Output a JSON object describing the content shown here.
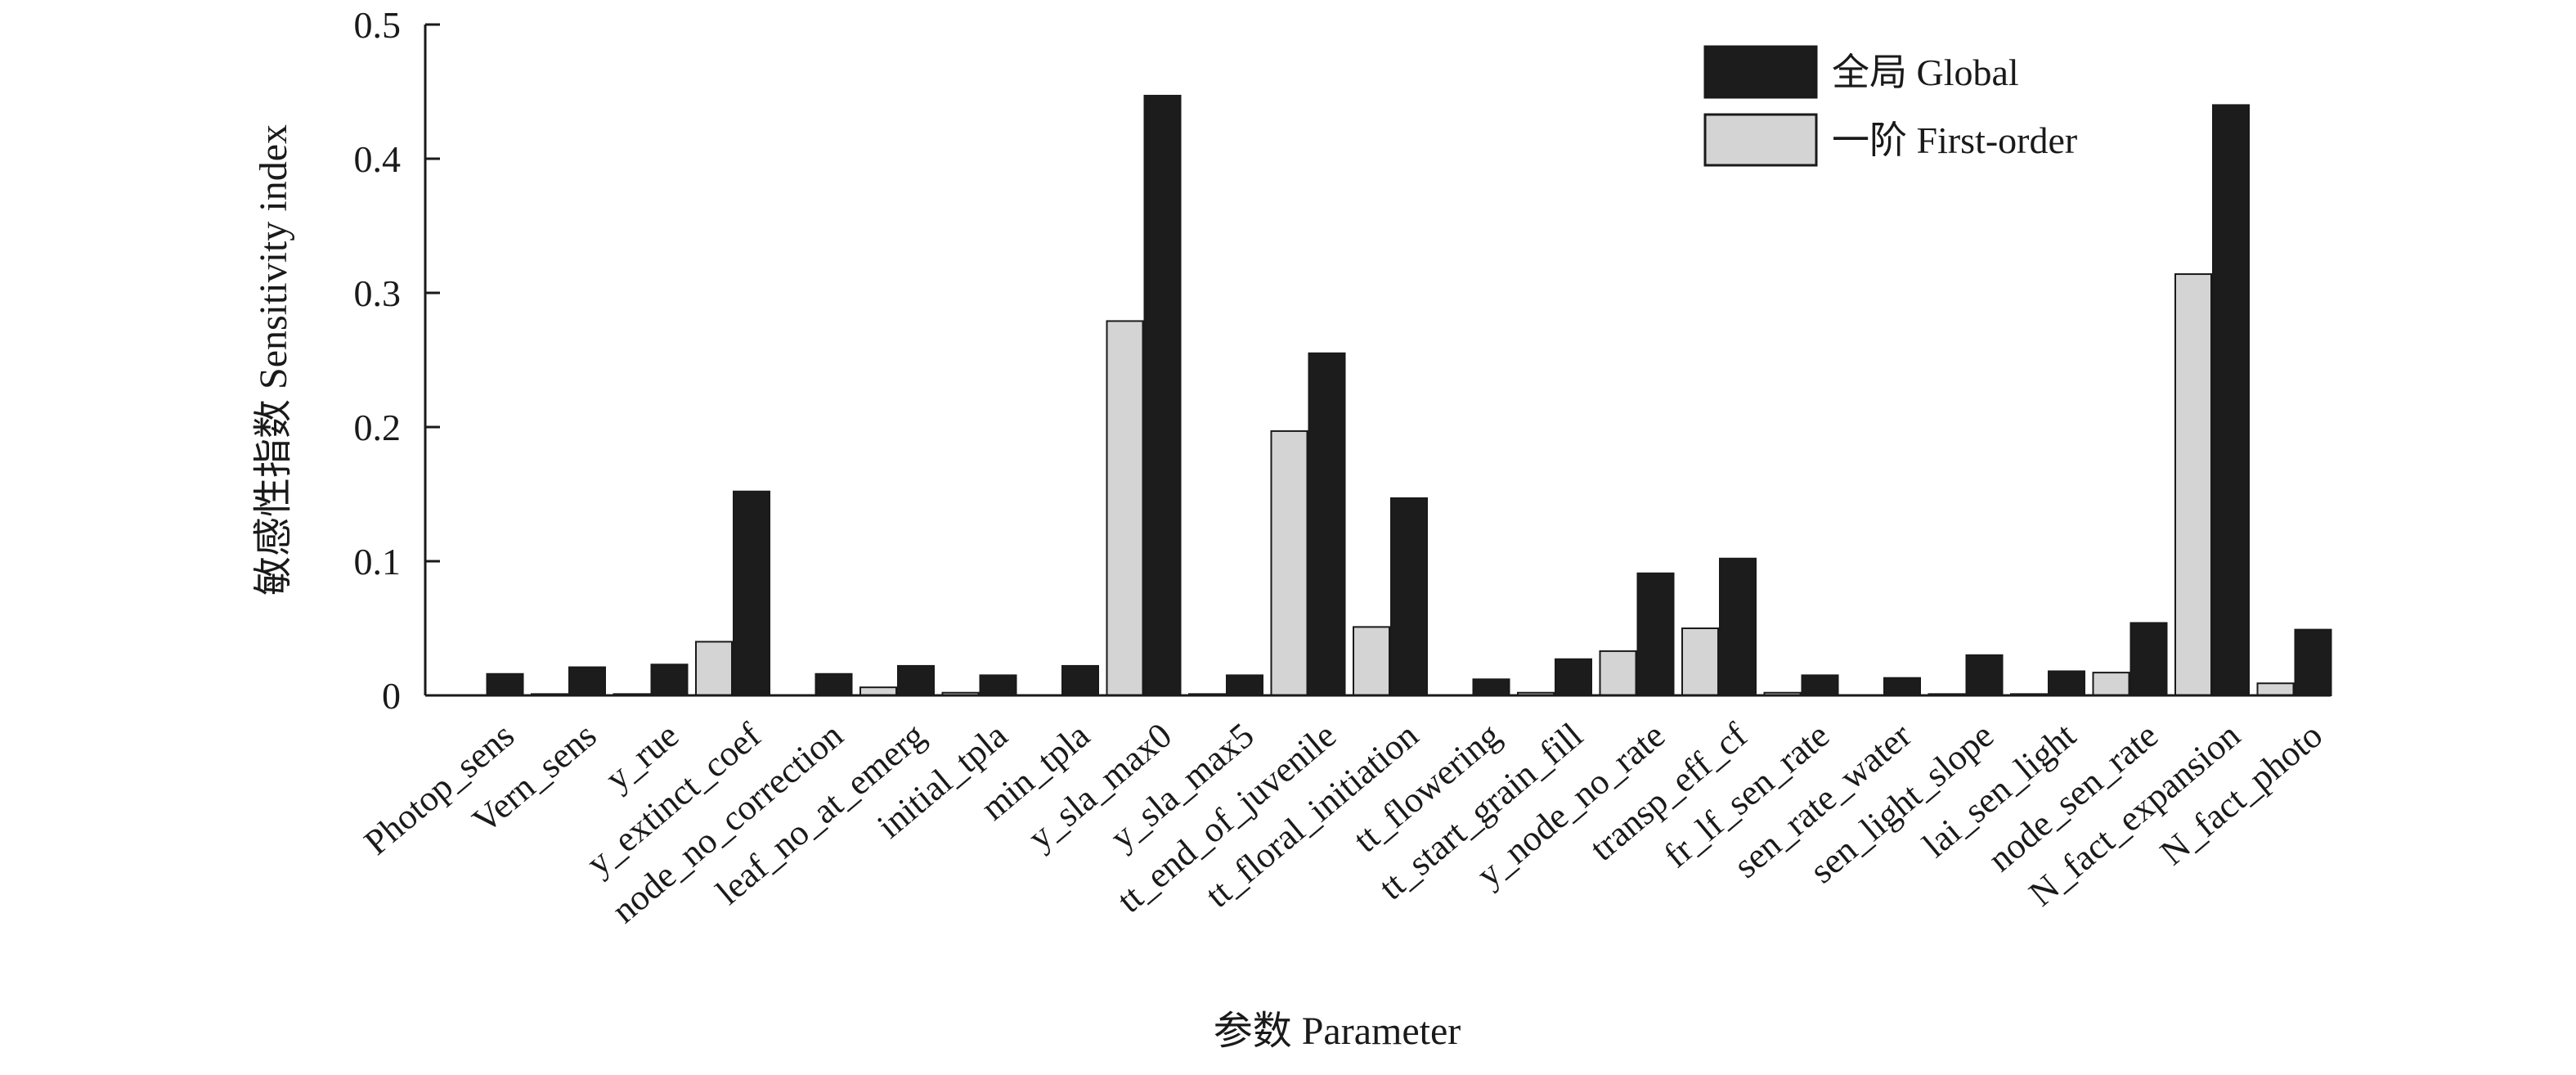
{
  "chart_data": {
    "type": "bar",
    "xlabel": "参数 Parameter",
    "ylabel": "敏感性指数 Sensitivity index",
    "ylim": [
      0,
      0.5
    ],
    "yticks": [
      "0",
      "0.1",
      "0.2",
      "0.3",
      "0.4",
      "0.5"
    ],
    "grid": false,
    "legend_position": "top-right",
    "categories": [
      "Photop_sens",
      "Vern_sens",
      "y_rue",
      "y_extinct_coef",
      "node_no_correction",
      "leaf_no_at_emerg",
      "initial_tpla",
      "min_tpla",
      "y_sla_max0",
      "y_sla_max5",
      "tt_end_of_juvenile",
      "tt_floral_initiation",
      "tt_flowering",
      "tt_start_grain_fill",
      "y_node_no_rate",
      "transp_eff_cf",
      "fr_lf_sen_rate",
      "sen_rate_water",
      "sen_light_slope",
      "lai_sen_light",
      "node_sen_rate",
      "N_fact_expansion",
      "N_fact_photo"
    ],
    "series": [
      {
        "name": "一阶 First-order",
        "color": "#d4d4d4",
        "values": [
          0.0,
          0.001,
          0.001,
          0.04,
          0.0,
          0.006,
          0.002,
          0.0,
          0.279,
          0.001,
          0.197,
          0.051,
          0.0,
          0.002,
          0.033,
          0.05,
          0.002,
          0.0,
          0.001,
          0.001,
          0.017,
          0.314,
          0.009
        ]
      },
      {
        "name": "全局 Global",
        "color": "#1c1c1c",
        "values": [
          0.016,
          0.021,
          0.023,
          0.152,
          0.016,
          0.022,
          0.015,
          0.022,
          0.447,
          0.015,
          0.255,
          0.147,
          0.012,
          0.027,
          0.091,
          0.102,
          0.015,
          0.013,
          0.03,
          0.018,
          0.054,
          0.44,
          0.049
        ]
      }
    ],
    "legend_order": [
      "全局 Global",
      "一阶 First-order"
    ]
  }
}
